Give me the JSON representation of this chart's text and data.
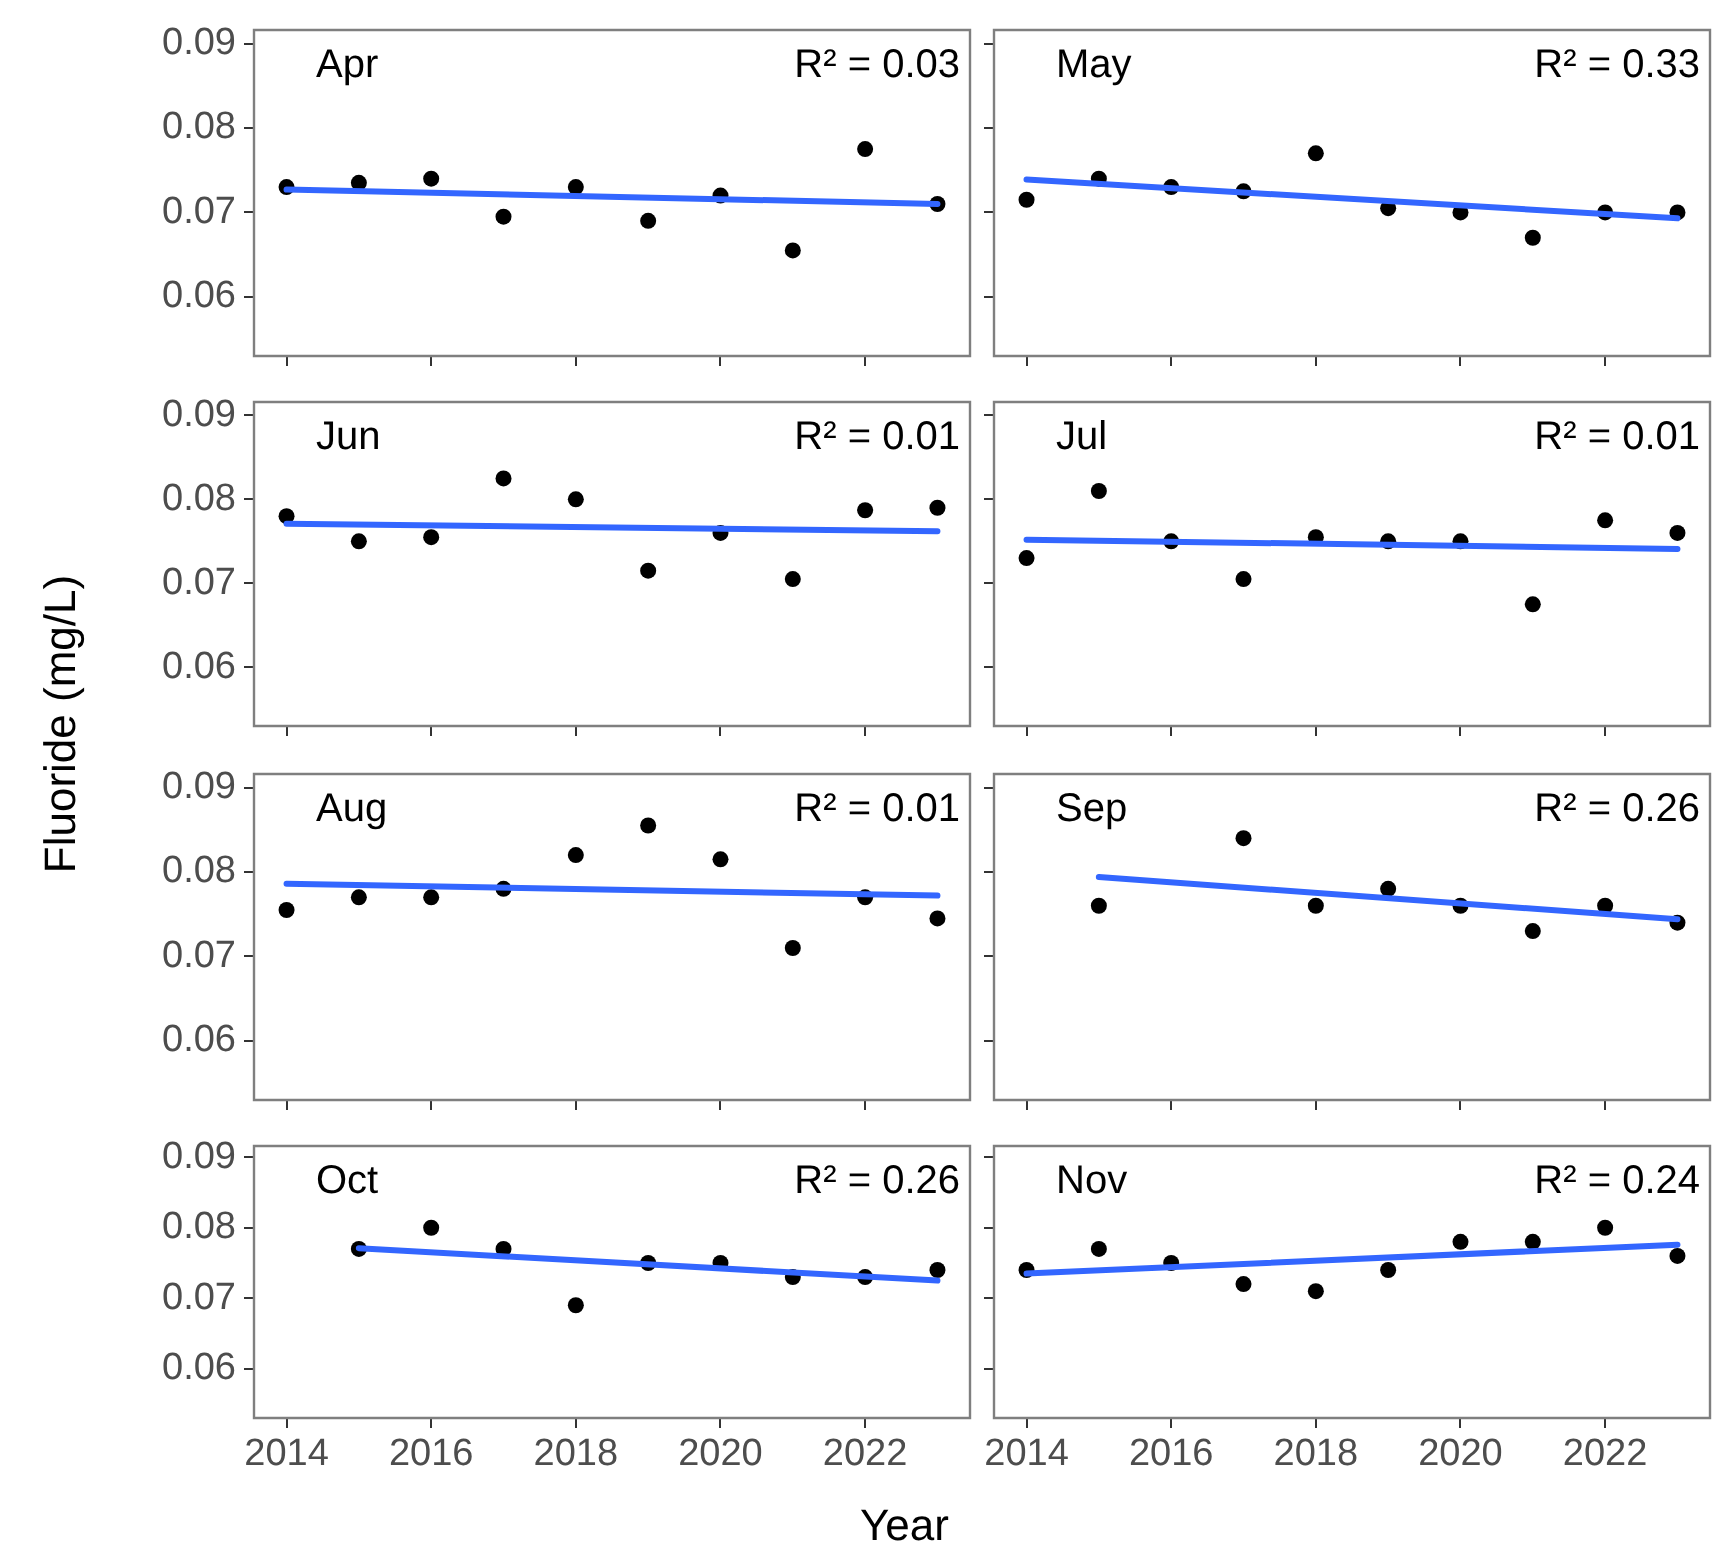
{
  "chart_data": [
    {
      "type": "scatter",
      "title": "Apr",
      "annotations": [
        "R² = 0.03"
      ],
      "xlabel": "Year",
      "ylabel": "Fluoride (mg/L)",
      "x": [
        2014,
        2015,
        2016,
        2017,
        2018,
        2019,
        2020,
        2021,
        2022,
        2023
      ],
      "series": [
        {
          "type": "scatter",
          "marker": "circle",
          "color": "#000000",
          "values": [
            0.073,
            0.0735,
            0.074,
            0.0695,
            0.073,
            0.069,
            0.072,
            0.0655,
            0.0775,
            0.071
          ]
        },
        {
          "type": "line",
          "marker": "none",
          "color": "#3366ff",
          "x": [
            2014,
            2023
          ],
          "values": [
            0.0727,
            0.071
          ]
        }
      ],
      "xlim": [
        2013.55,
        2023.45
      ],
      "ylim": [
        0.053,
        0.0916
      ],
      "xticks": [
        2014,
        2016,
        2018,
        2020,
        2022
      ],
      "yticks": [
        0.06,
        0.07,
        0.08,
        0.09
      ],
      "tick_labels": "y"
    },
    {
      "type": "scatter",
      "title": "May",
      "annotations": [
        "R² = 0.33"
      ],
      "x": [
        2014,
        2015,
        2016,
        2017,
        2018,
        2019,
        2020,
        2021,
        2022,
        2023
      ],
      "series": [
        {
          "type": "scatter",
          "marker": "circle",
          "color": "#000000",
          "values": [
            0.0715,
            0.074,
            0.073,
            0.0725,
            0.077,
            0.0705,
            0.07,
            0.067,
            0.07,
            0.07
          ]
        },
        {
          "type": "line",
          "marker": "none",
          "color": "#3366ff",
          "x": [
            2014,
            2023
          ],
          "values": [
            0.0739,
            0.0693
          ]
        }
      ],
      "xlim": [
        2013.55,
        2023.45
      ],
      "ylim": [
        0.053,
        0.0916
      ],
      "xticks": [
        2014,
        2016,
        2018,
        2020,
        2022
      ],
      "yticks": [
        0.06,
        0.07,
        0.08,
        0.09
      ],
      "tick_labels": false
    },
    {
      "type": "scatter",
      "title": "Jun",
      "annotations": [
        "R² = 0.01"
      ],
      "x": [
        2014,
        2015,
        2016,
        2017,
        2018,
        2019,
        2020,
        2021,
        2022,
        2023
      ],
      "series": [
        {
          "type": "scatter",
          "marker": "circle",
          "color": "#000000",
          "values": [
            0.078,
            0.075,
            0.0755,
            0.0825,
            0.08,
            0.0715,
            0.076,
            0.0705,
            0.0787,
            0.079
          ]
        },
        {
          "type": "line",
          "marker": "none",
          "color": "#3366ff",
          "x": [
            2014,
            2023
          ],
          "values": [
            0.0771,
            0.0762
          ]
        }
      ],
      "xlim": [
        2013.55,
        2023.45
      ],
      "ylim": [
        0.053,
        0.0916
      ],
      "xticks": [
        2014,
        2016,
        2018,
        2020,
        2022
      ],
      "yticks": [
        0.06,
        0.07,
        0.08,
        0.09
      ],
      "tick_labels": "y"
    },
    {
      "type": "scatter",
      "title": "Jul",
      "annotations": [
        "R² = 0.01"
      ],
      "x": [
        2014,
        2015,
        2016,
        2017,
        2018,
        2019,
        2020,
        2021,
        2022,
        2023
      ],
      "series": [
        {
          "type": "scatter",
          "marker": "circle",
          "color": "#000000",
          "values": [
            0.073,
            0.081,
            0.075,
            0.0705,
            0.0755,
            0.075,
            0.075,
            0.0675,
            0.0775,
            0.076
          ]
        },
        {
          "type": "line",
          "marker": "none",
          "color": "#3366ff",
          "x": [
            2014,
            2023
          ],
          "values": [
            0.0752,
            0.0741
          ]
        }
      ],
      "xlim": [
        2013.55,
        2023.45
      ],
      "ylim": [
        0.053,
        0.0916
      ],
      "xticks": [
        2014,
        2016,
        2018,
        2020,
        2022
      ],
      "yticks": [
        0.06,
        0.07,
        0.08,
        0.09
      ],
      "tick_labels": false
    },
    {
      "type": "scatter",
      "title": "Aug",
      "annotations": [
        "R² = 0.01"
      ],
      "x": [
        2014,
        2015,
        2016,
        2017,
        2018,
        2019,
        2020,
        2021,
        2022,
        2023
      ],
      "series": [
        {
          "type": "scatter",
          "marker": "circle",
          "color": "#000000",
          "values": [
            0.0755,
            0.077,
            0.077,
            0.078,
            0.082,
            0.0855,
            0.0815,
            0.071,
            0.077,
            0.0745
          ]
        },
        {
          "type": "line",
          "marker": "none",
          "color": "#3366ff",
          "x": [
            2014,
            2023
          ],
          "values": [
            0.0786,
            0.0772
          ]
        }
      ],
      "xlim": [
        2013.55,
        2023.45
      ],
      "ylim": [
        0.053,
        0.0916
      ],
      "xticks": [
        2014,
        2016,
        2018,
        2020,
        2022
      ],
      "yticks": [
        0.06,
        0.07,
        0.08,
        0.09
      ],
      "tick_labels": "y"
    },
    {
      "type": "scatter",
      "title": "Sep",
      "annotations": [
        "R² = 0.26"
      ],
      "x": [
        2015,
        2017,
        2018,
        2019,
        2020,
        2021,
        2022,
        2023
      ],
      "series": [
        {
          "type": "scatter",
          "marker": "circle",
          "color": "#000000",
          "values": [
            0.076,
            0.084,
            0.076,
            0.078,
            0.076,
            0.073,
            0.076,
            0.074
          ]
        },
        {
          "type": "line",
          "marker": "none",
          "color": "#3366ff",
          "x": [
            2015,
            2023
          ],
          "values": [
            0.0794,
            0.0744
          ]
        }
      ],
      "xlim": [
        2013.55,
        2023.45
      ],
      "ylim": [
        0.053,
        0.0916
      ],
      "xticks": [
        2014,
        2016,
        2018,
        2020,
        2022
      ],
      "yticks": [
        0.06,
        0.07,
        0.08,
        0.09
      ],
      "tick_labels": false
    },
    {
      "type": "scatter",
      "title": "Oct",
      "annotations": [
        "R² = 0.26"
      ],
      "x": [
        2015,
        2016,
        2017,
        2018,
        2019,
        2020,
        2021,
        2022,
        2023
      ],
      "series": [
        {
          "type": "scatter",
          "marker": "circle",
          "color": "#000000",
          "values": [
            0.077,
            0.08,
            0.077,
            0.069,
            0.075,
            0.075,
            0.073,
            0.073,
            0.074
          ]
        },
        {
          "type": "line",
          "marker": "none",
          "color": "#3366ff",
          "x": [
            2015,
            2023
          ],
          "values": [
            0.0771,
            0.0725
          ]
        }
      ],
      "xlim": [
        2013.55,
        2023.45
      ],
      "ylim": [
        0.053,
        0.0916
      ],
      "xticks": [
        2014,
        2016,
        2018,
        2020,
        2022
      ],
      "yticks": [
        0.06,
        0.07,
        0.08,
        0.09
      ]
    },
    {
      "type": "scatter",
      "title": "Nov",
      "annotations": [
        "R² = 0.24"
      ],
      "x": [
        2014,
        2015,
        2016,
        2017,
        2018,
        2019,
        2020,
        2021,
        2022,
        2023
      ],
      "series": [
        {
          "type": "scatter",
          "marker": "circle",
          "color": "#000000",
          "values": [
            0.074,
            0.077,
            0.075,
            0.072,
            0.071,
            0.074,
            0.078,
            0.078,
            0.08,
            0.076
          ]
        },
        {
          "type": "line",
          "marker": "none",
          "color": "#3366ff",
          "x": [
            2014,
            2023
          ],
          "values": [
            0.0735,
            0.0776
          ]
        }
      ],
      "xlim": [
        2013.55,
        2023.45
      ],
      "ylim": [
        0.053,
        0.0916
      ],
      "xticks": [
        2014,
        2016,
        2018,
        2020,
        2022
      ],
      "yticks": [
        0.06,
        0.07,
        0.08,
        0.09
      ],
      "tick_labels": "x"
    }
  ]
}
